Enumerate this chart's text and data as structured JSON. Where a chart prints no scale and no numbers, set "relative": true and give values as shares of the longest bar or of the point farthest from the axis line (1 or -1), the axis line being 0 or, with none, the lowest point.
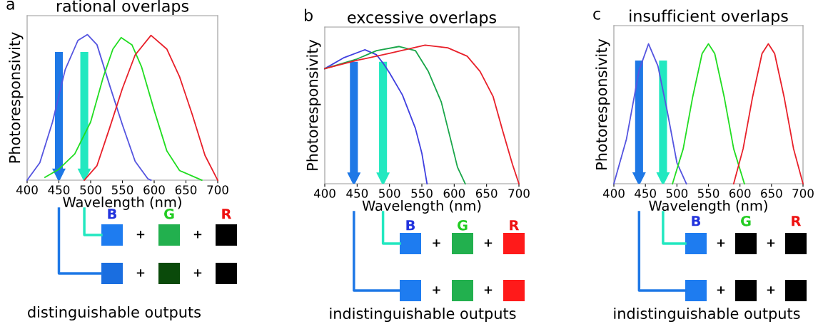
{
  "chart_data": [
    {
      "type": "line",
      "title": "rational overlaps",
      "xlabel": "Wavelength (nm)",
      "ylabel": "Photoresponsivity",
      "relative": true,
      "tick_labels": "x",
      "xlim": [
        400,
        700
      ],
      "xticks": [
        400,
        450,
        500,
        550,
        600,
        650,
        700
      ],
      "grid": false,
      "marker": "none",
      "line_style": "solid",
      "annotations": [
        "a",
        "B",
        "G",
        "R",
        "+",
        "+",
        "+",
        "+",
        "distinguishable outputs"
      ],
      "ref_lines": [
        {
          "axis": "x",
          "value": 450,
          "color": "#1e78e6"
        },
        {
          "axis": "x",
          "value": 490,
          "color": "#22e8c0"
        }
      ],
      "series": [
        {
          "color": "#5555e0",
          "x": [
            400,
            420,
            440,
            460,
            480,
            495,
            510,
            530,
            550,
            570,
            590,
            595
          ],
          "values": [
            0,
            0.12,
            0.4,
            0.76,
            0.96,
            1.0,
            0.93,
            0.65,
            0.38,
            0.13,
            0.01,
            0
          ]
        },
        {
          "color": "#22dd22",
          "x": [
            428,
            450,
            475,
            500,
            520,
            535,
            548,
            565,
            580,
            600,
            620,
            640,
            675
          ],
          "values": [
            0.02,
            0.075,
            0.18,
            0.4,
            0.71,
            0.9,
            0.98,
            0.93,
            0.78,
            0.48,
            0.2,
            0.066,
            0
          ]
        },
        {
          "color": "#e8202a",
          "x": [
            490,
            510,
            530,
            550,
            570,
            595,
            620,
            640,
            660,
            680,
            700
          ],
          "values": [
            0,
            0.1,
            0.36,
            0.63,
            0.86,
            0.995,
            0.9,
            0.71,
            0.45,
            0.17,
            0
          ]
        }
      ]
    },
    {
      "type": "line",
      "title": "excessive overlaps",
      "xlabel": "Wavelength (nm)",
      "ylabel": "Photoresponsivity",
      "relative": true,
      "tick_labels": "x",
      "xlim": [
        400,
        700
      ],
      "xticks": [
        400,
        450,
        500,
        550,
        600,
        650,
        700
      ],
      "grid": false,
      "marker": "none",
      "line_style": "solid",
      "annotations": [
        "b",
        "B",
        "G",
        "R",
        "+",
        "+",
        "+",
        "+",
        "indistinguishable outputs"
      ],
      "ref_lines": [
        {
          "axis": "x",
          "value": 445,
          "color": "#1e78e6"
        },
        {
          "axis": "x",
          "value": 490,
          "color": "#22e8c0"
        }
      ],
      "series": [
        {
          "color": "#4040e0",
          "x": [
            400,
            430,
            462,
            480,
            490,
            500,
            520,
            540,
            550,
            558
          ],
          "values": [
            0.83,
            0.91,
            0.966,
            0.93,
            0.87,
            0.8,
            0.64,
            0.4,
            0.22,
            0
          ]
        },
        {
          "color": "#1aa64a",
          "x": [
            400,
            450,
            480,
            515,
            540,
            560,
            580,
            595,
            605,
            617
          ],
          "values": [
            0.83,
            0.9,
            0.96,
            0.99,
            0.96,
            0.81,
            0.59,
            0.31,
            0.12,
            0
          ]
        },
        {
          "color": "#e8202a",
          "x": [
            400,
            450,
            500,
            555,
            590,
            620,
            640,
            660,
            675,
            690,
            700
          ],
          "values": [
            0.83,
            0.89,
            0.94,
            1.0,
            0.98,
            0.92,
            0.81,
            0.63,
            0.38,
            0.14,
            0
          ]
        }
      ]
    },
    {
      "type": "line",
      "title": "insufficient overlaps",
      "xlabel": "Wavelength (nm)",
      "ylabel": "Photoresponsivity",
      "relative": true,
      "tick_labels": "x",
      "xlim": [
        400,
        700
      ],
      "xticks": [
        400,
        450,
        500,
        550,
        600,
        650,
        700
      ],
      "grid": false,
      "marker": "none",
      "line_style": "solid",
      "annotations": [
        "c",
        "B",
        "G",
        "R",
        "+",
        "+",
        "+",
        "+",
        "indistinguishable outputs"
      ],
      "ref_lines": [
        {
          "axis": "x",
          "value": 440,
          "color": "#1e78e6"
        },
        {
          "axis": "x",
          "value": 478,
          "color": "#22e8c0"
        }
      ],
      "series": [
        {
          "color": "#5555e0",
          "x": [
            400,
            420,
            440,
            455,
            470,
            485,
            500,
            515
          ],
          "values": [
            0,
            0.32,
            0.81,
            1.0,
            0.84,
            0.51,
            0.15,
            0
          ]
        },
        {
          "color": "#22dd22",
          "x": [
            493,
            510,
            525,
            540,
            550,
            560,
            575,
            590,
            607
          ],
          "values": [
            0,
            0.25,
            0.62,
            0.93,
            1.0,
            0.93,
            0.62,
            0.25,
            0
          ]
        },
        {
          "color": "#e8202a",
          "x": [
            590,
            605,
            620,
            635,
            645,
            655,
            670,
            685,
            700
          ],
          "values": [
            0,
            0.25,
            0.62,
            0.93,
            1.0,
            0.93,
            0.62,
            0.25,
            0
          ]
        }
      ]
    }
  ]
}
